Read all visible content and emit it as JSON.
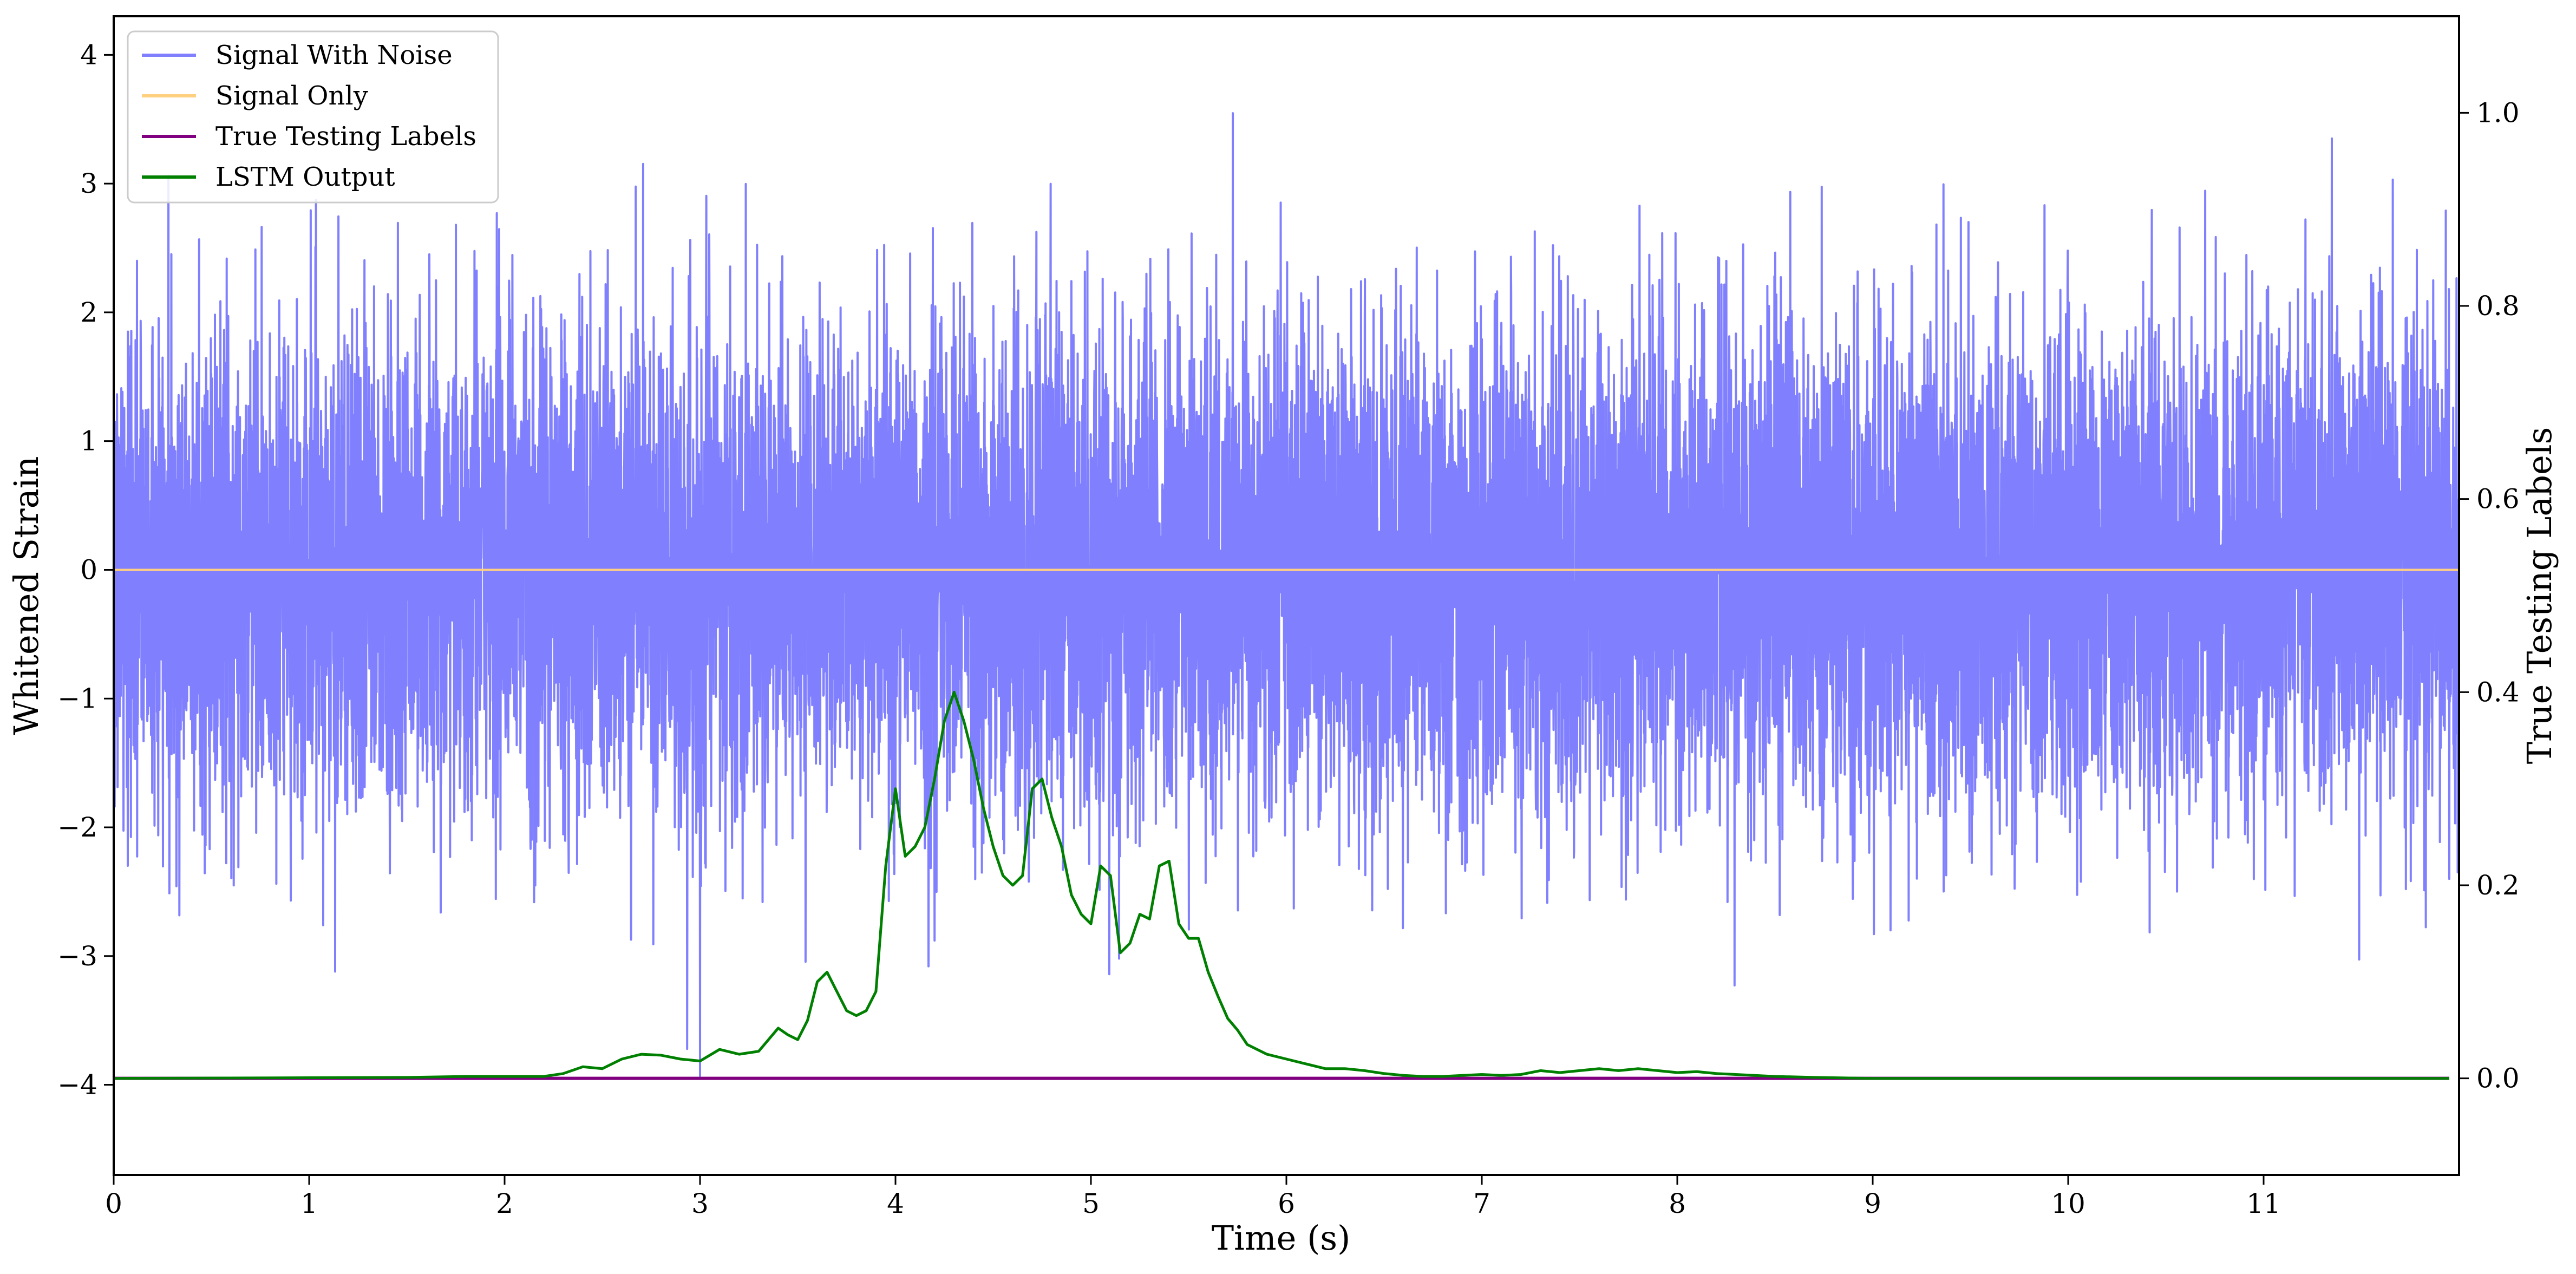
{
  "chart_data": {
    "type": "line",
    "xlabel": "Time (s)",
    "ylabel": "Whitened Strain",
    "y2label": "True Testing Labels",
    "xlim": [
      0,
      12
    ],
    "ylim": [
      -4.7,
      4.3
    ],
    "y2lim": [
      -0.1,
      1.1
    ],
    "x_ticks": [
      0,
      1,
      2,
      3,
      4,
      5,
      6,
      7,
      8,
      9,
      10,
      11
    ],
    "x_tick_labels": [
      "0",
      "1",
      "2",
      "3",
      "4",
      "5",
      "6",
      "7",
      "8",
      "9",
      "10",
      "11"
    ],
    "y_ticks": [
      -4,
      -3,
      -2,
      -1,
      0,
      1,
      2,
      3,
      4
    ],
    "y_tick_labels": [
      "−4",
      "−3",
      "−2",
      "−1",
      "0",
      "1",
      "2",
      "3",
      "4"
    ],
    "y2_ticks": [
      0.0,
      0.2,
      0.4,
      0.6,
      0.8,
      1.0
    ],
    "y2_tick_labels": [
      "0.0",
      "0.2",
      "0.4",
      "0.6",
      "0.8",
      "1.0"
    ],
    "grid": false,
    "legend_position": "top-left",
    "legend": [
      {
        "name": "Signal With Noise",
        "color": "#8080ff"
      },
      {
        "name": "Signal Only",
        "color": "#ffd080"
      },
      {
        "name": "True Testing Labels",
        "color": "#800080"
      },
      {
        "name": "LSTM Output",
        "color": "#008000"
      }
    ],
    "series": [
      {
        "name": "Signal With Noise",
        "axis": "left",
        "color": "#8080ff",
        "style": "dense random noise, roughly gaussian, std ~0.9, peaks to about ±4",
        "amplitude_range": [
          -4.3,
          3.95
        ],
        "x_range": [
          0,
          12
        ]
      },
      {
        "name": "Signal Only",
        "axis": "left",
        "color": "#ffd080",
        "x": [
          0,
          12
        ],
        "y": [
          0,
          0
        ]
      },
      {
        "name": "True Testing Labels",
        "axis": "right",
        "color": "#800080",
        "x": [
          0,
          11.95
        ],
        "y": [
          0,
          0
        ]
      },
      {
        "name": "LSTM Output",
        "axis": "right",
        "color": "#008000",
        "x": [
          0,
          1.5,
          1.8,
          2.2,
          2.3,
          2.4,
          2.5,
          2.6,
          2.7,
          2.8,
          2.9,
          3.0,
          3.1,
          3.2,
          3.3,
          3.4,
          3.45,
          3.5,
          3.55,
          3.6,
          3.65,
          3.7,
          3.75,
          3.8,
          3.85,
          3.9,
          3.95,
          4.0,
          4.05,
          4.1,
          4.15,
          4.2,
          4.25,
          4.3,
          4.35,
          4.4,
          4.45,
          4.5,
          4.55,
          4.6,
          4.65,
          4.7,
          4.75,
          4.8,
          4.85,
          4.9,
          4.95,
          5.0,
          5.05,
          5.1,
          5.15,
          5.2,
          5.25,
          5.3,
          5.35,
          5.4,
          5.45,
          5.5,
          5.55,
          5.6,
          5.65,
          5.7,
          5.75,
          5.8,
          5.9,
          6.0,
          6.1,
          6.2,
          6.3,
          6.4,
          6.5,
          6.6,
          6.7,
          6.8,
          6.9,
          7.0,
          7.1,
          7.2,
          7.3,
          7.4,
          7.5,
          7.6,
          7.7,
          7.8,
          7.9,
          8.0,
          8.1,
          8.2,
          8.3,
          8.5,
          8.7,
          9.0,
          9.5,
          10.0,
          11.0,
          11.95
        ],
        "y": [
          0.0,
          0.001,
          0.002,
          0.002,
          0.005,
          0.012,
          0.01,
          0.02,
          0.025,
          0.024,
          0.02,
          0.018,
          0.03,
          0.025,
          0.028,
          0.052,
          0.045,
          0.04,
          0.06,
          0.1,
          0.11,
          0.09,
          0.07,
          0.065,
          0.07,
          0.09,
          0.22,
          0.3,
          0.23,
          0.24,
          0.26,
          0.31,
          0.37,
          0.4,
          0.37,
          0.33,
          0.28,
          0.24,
          0.21,
          0.2,
          0.21,
          0.3,
          0.31,
          0.27,
          0.24,
          0.19,
          0.17,
          0.16,
          0.22,
          0.21,
          0.13,
          0.14,
          0.17,
          0.165,
          0.22,
          0.225,
          0.16,
          0.145,
          0.145,
          0.11,
          0.085,
          0.062,
          0.05,
          0.035,
          0.025,
          0.02,
          0.015,
          0.01,
          0.01,
          0.008,
          0.005,
          0.003,
          0.002,
          0.002,
          0.003,
          0.004,
          0.003,
          0.004,
          0.008,
          0.006,
          0.008,
          0.01,
          0.008,
          0.01,
          0.008,
          0.006,
          0.007,
          0.005,
          0.004,
          0.002,
          0.001,
          0.0,
          0.0,
          0.0,
          0.0,
          0.0
        ]
      }
    ]
  }
}
